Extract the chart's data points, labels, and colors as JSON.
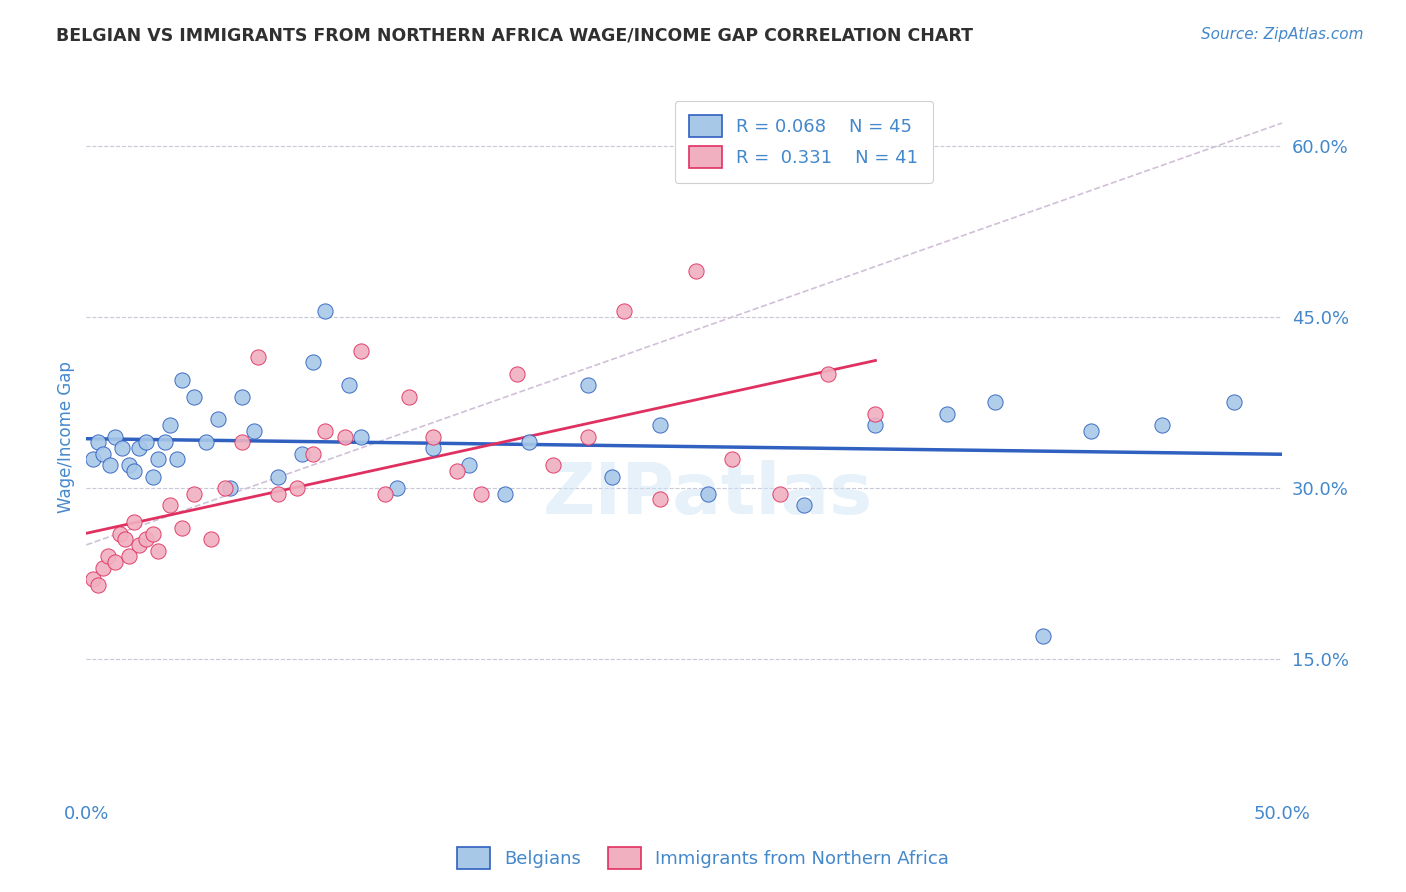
{
  "title": "BELGIAN VS IMMIGRANTS FROM NORTHERN AFRICA WAGE/INCOME GAP CORRELATION CHART",
  "source": "Source: ZipAtlas.com",
  "ylabel": "Wage/Income Gap",
  "xlim": [
    0.0,
    0.5
  ],
  "ylim": [
    0.03,
    0.66
  ],
  "y_tick_labels_right": [
    "15.0%",
    "30.0%",
    "45.0%",
    "60.0%"
  ],
  "y_ticks_right": [
    0.15,
    0.3,
    0.45,
    0.6
  ],
  "legend_r1": "R = 0.068",
  "legend_n1": "N = 45",
  "legend_r2": "R = 0.331",
  "legend_n2": "N = 41",
  "blue_color": "#a8c8e8",
  "pink_color": "#f0b0c0",
  "line_blue": "#3060c0",
  "line_pink": "#e03060",
  "ref_line_color": "#d0c0d8",
  "grid_color": "#c8c8d8",
  "text_color": "#4488cc",
  "title_color": "#303030",
  "watermark": "ZIPatlas",
  "blue_x": [
    0.003,
    0.005,
    0.007,
    0.01,
    0.012,
    0.015,
    0.018,
    0.02,
    0.022,
    0.025,
    0.028,
    0.03,
    0.033,
    0.035,
    0.038,
    0.04,
    0.045,
    0.05,
    0.055,
    0.06,
    0.065,
    0.07,
    0.08,
    0.09,
    0.095,
    0.1,
    0.11,
    0.115,
    0.13,
    0.145,
    0.16,
    0.175,
    0.185,
    0.21,
    0.22,
    0.24,
    0.26,
    0.3,
    0.33,
    0.36,
    0.38,
    0.4,
    0.42,
    0.45,
    0.48
  ],
  "blue_y": [
    0.325,
    0.34,
    0.33,
    0.32,
    0.345,
    0.335,
    0.32,
    0.315,
    0.335,
    0.34,
    0.31,
    0.325,
    0.34,
    0.355,
    0.325,
    0.395,
    0.38,
    0.34,
    0.36,
    0.3,
    0.38,
    0.35,
    0.31,
    0.33,
    0.41,
    0.455,
    0.39,
    0.345,
    0.3,
    0.335,
    0.32,
    0.295,
    0.34,
    0.39,
    0.31,
    0.355,
    0.295,
    0.285,
    0.355,
    0.365,
    0.375,
    0.17,
    0.35,
    0.355,
    0.375
  ],
  "pink_x": [
    0.003,
    0.005,
    0.007,
    0.009,
    0.012,
    0.014,
    0.016,
    0.018,
    0.02,
    0.022,
    0.025,
    0.028,
    0.03,
    0.035,
    0.04,
    0.045,
    0.052,
    0.058,
    0.065,
    0.072,
    0.08,
    0.088,
    0.095,
    0.1,
    0.108,
    0.115,
    0.125,
    0.135,
    0.145,
    0.155,
    0.165,
    0.18,
    0.195,
    0.21,
    0.225,
    0.24,
    0.255,
    0.27,
    0.29,
    0.31,
    0.33
  ],
  "pink_y": [
    0.22,
    0.215,
    0.23,
    0.24,
    0.235,
    0.26,
    0.255,
    0.24,
    0.27,
    0.25,
    0.255,
    0.26,
    0.245,
    0.285,
    0.265,
    0.295,
    0.255,
    0.3,
    0.34,
    0.415,
    0.295,
    0.3,
    0.33,
    0.35,
    0.345,
    0.42,
    0.295,
    0.38,
    0.345,
    0.315,
    0.295,
    0.4,
    0.32,
    0.345,
    0.455,
    0.29,
    0.49,
    0.325,
    0.295,
    0.4,
    0.365
  ]
}
